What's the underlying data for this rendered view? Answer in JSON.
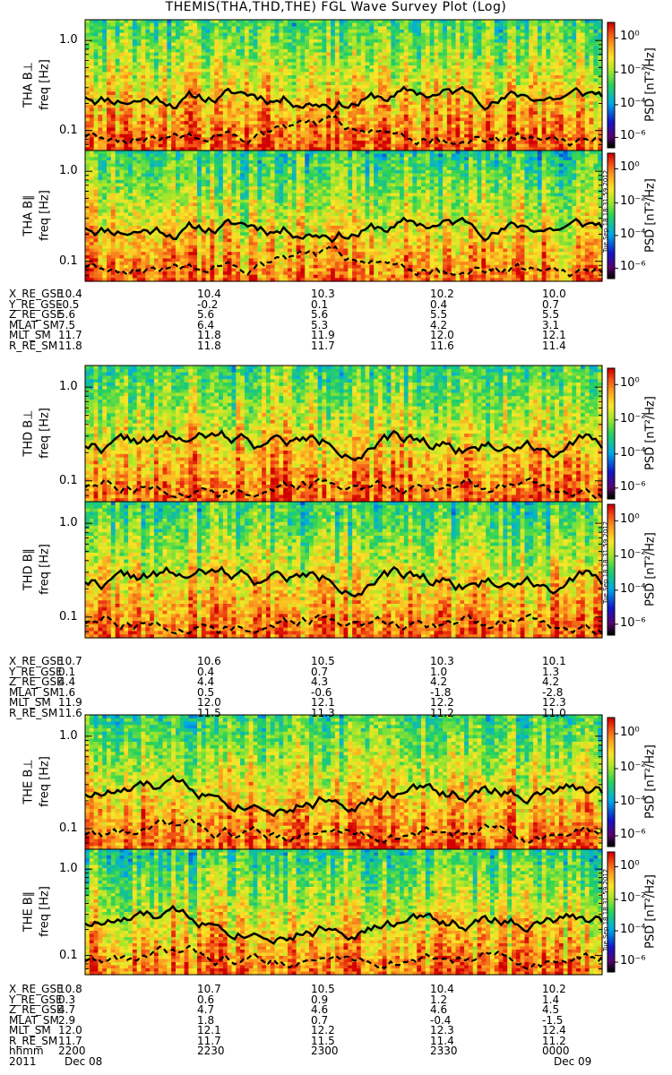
{
  "title": "THEMIS(THA,THD,THE) FGL Wave Survey Plot (Log)",
  "colors": {
    "line": "#000000",
    "background": "#ffffff"
  },
  "colorbar": {
    "title": "PSD [nT²/Hz]",
    "ticks": [
      "10⁰",
      "10⁻²",
      "10⁻⁴",
      "10⁻⁶"
    ]
  },
  "yticks": [
    "1.0",
    "0.1"
  ],
  "ylabel_freq": "freq [Hz]",
  "stamp": "Tue Sep 18 18:31:59 2012",
  "chart_data": [
    {
      "type": "heatmap",
      "probe": "THA",
      "component": "B⊥",
      "label": "THA B⊥",
      "ylabel": "freq [Hz]",
      "yscale": "log",
      "ylim": [
        0.06,
        1.7
      ],
      "zlim": [
        1e-07,
        10
      ],
      "x_range": [
        "2200",
        "0000"
      ]
    },
    {
      "type": "heatmap",
      "probe": "THA",
      "component": "B∥",
      "label": "THA B∥",
      "ylabel": "freq [Hz]",
      "yscale": "log",
      "ylim": [
        0.06,
        1.7
      ],
      "zlim": [
        1e-07,
        10
      ],
      "x_range": [
        "2200",
        "0000"
      ]
    },
    {
      "type": "heatmap",
      "probe": "THD",
      "component": "B⊥",
      "label": "THD B⊥",
      "ylabel": "freq [Hz]",
      "yscale": "log",
      "ylim": [
        0.06,
        1.7
      ],
      "zlim": [
        1e-07,
        10
      ],
      "x_range": [
        "2200",
        "0000"
      ]
    },
    {
      "type": "heatmap",
      "probe": "THD",
      "component": "B∥",
      "label": "THD B∥",
      "ylabel": "freq [Hz]",
      "yscale": "log",
      "ylim": [
        0.06,
        1.7
      ],
      "zlim": [
        1e-07,
        10
      ],
      "x_range": [
        "2200",
        "0000"
      ]
    },
    {
      "type": "heatmap",
      "probe": "THE",
      "component": "B⊥",
      "label": "THE B⊥",
      "ylabel": "freq [Hz]",
      "yscale": "log",
      "ylim": [
        0.06,
        1.7
      ],
      "zlim": [
        1e-07,
        10
      ],
      "x_range": [
        "2200",
        "0000"
      ]
    },
    {
      "type": "heatmap",
      "probe": "THE",
      "component": "B∥",
      "label": "THE B∥",
      "ylabel": "freq [Hz]",
      "yscale": "log",
      "ylim": [
        0.06,
        1.7
      ],
      "zlim": [
        1e-07,
        10
      ],
      "x_range": [
        "2200",
        "0000"
      ]
    }
  ],
  "ephemeris": [
    {
      "probe": "THA",
      "rows": [
        {
          "label": "X_RE_GSE",
          "values": [
            "10.4",
            "10.4",
            "10.3",
            "10.2",
            "10.0"
          ]
        },
        {
          "label": "Y_RE_GSE",
          "values": [
            "-0.5",
            "-0.2",
            "0.1",
            "0.4",
            "0.7"
          ]
        },
        {
          "label": "Z_RE_GSE",
          "values": [
            "5.6",
            "5.6",
            "5.6",
            "5.5",
            "5.5"
          ]
        },
        {
          "label": "MLAT_SM",
          "values": [
            "7.5",
            "6.4",
            "5.3",
            "4.2",
            "3.1"
          ]
        },
        {
          "label": "MLT_SM",
          "values": [
            "11.7",
            "11.8",
            "11.9",
            "12.0",
            "12.1"
          ]
        },
        {
          "label": "R_RE_SM",
          "values": [
            "11.8",
            "11.8",
            "11.7",
            "11.6",
            "11.4"
          ]
        }
      ]
    },
    {
      "probe": "THD",
      "rows": [
        {
          "label": "X_RE_GSE",
          "values": [
            "10.7",
            "10.6",
            "10.5",
            "10.3",
            "10.1"
          ]
        },
        {
          "label": "Y_RE_GSE",
          "values": [
            "0.1",
            "0.4",
            "0.7",
            "1.0",
            "1.3"
          ]
        },
        {
          "label": "Z_RE_GSE",
          "values": [
            "4.4",
            "4.4",
            "4.3",
            "4.2",
            "4.2"
          ]
        },
        {
          "label": "MLAT_SM",
          "values": [
            "1.6",
            "0.5",
            "-0.6",
            "-1.8",
            "-2.8"
          ]
        },
        {
          "label": "MLT_SM",
          "values": [
            "11.9",
            "12.0",
            "12.1",
            "12.2",
            "12.3"
          ]
        },
        {
          "label": "R_RE_SM",
          "values": [
            "11.6",
            "11.5",
            "11.3",
            "11.2",
            "11.0"
          ]
        }
      ]
    },
    {
      "probe": "THE",
      "rows": [
        {
          "label": "X_RE_GSE",
          "values": [
            "10.8",
            "10.7",
            "10.5",
            "10.4",
            "10.2"
          ]
        },
        {
          "label": "Y_RE_GSE",
          "values": [
            "0.3",
            "0.6",
            "0.9",
            "1.2",
            "1.4"
          ]
        },
        {
          "label": "Z_RE_GSE",
          "values": [
            "4.7",
            "4.7",
            "4.6",
            "4.6",
            "4.5"
          ]
        },
        {
          "label": "MLAT_SM",
          "values": [
            "2.9",
            "1.8",
            "0.7",
            "-0.4",
            "-1.5"
          ]
        },
        {
          "label": "MLT_SM",
          "values": [
            "12.0",
            "12.1",
            "12.2",
            "12.3",
            "12.4"
          ]
        },
        {
          "label": "R_RE_SM",
          "values": [
            "11.7",
            "11.7",
            "11.5",
            "11.4",
            "11.2"
          ]
        },
        {
          "label": "hhmm",
          "values": [
            "2200",
            "2230",
            "2300",
            "2330",
            "0000"
          ]
        }
      ]
    }
  ],
  "date_row": {
    "year": "2011",
    "start": "Dec 08",
    "end": "Dec 09"
  }
}
